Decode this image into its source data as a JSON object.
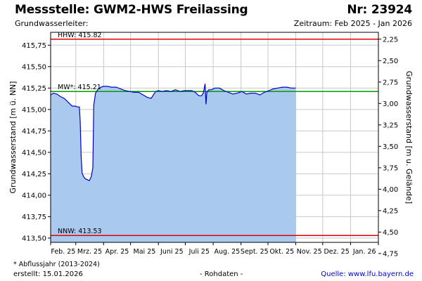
{
  "header": {
    "title_left": "Messstelle: GWM2-HWS Freilassing",
    "title_right": "Nr: 23924",
    "subtitle_left": "Grundwasserleiter:",
    "subtitle_right": "Zeitraum: Feb 2025 - Jan 2026"
  },
  "footer": {
    "footnote": "* Abflussjahr (2013-2024)",
    "created": "erstellt:  15.01.2026",
    "rohdaten": "- Rohdaten -",
    "source_label": "Quelle: ",
    "source_url": "www.lfu.bayern.de"
  },
  "colors": {
    "fill": "#a9c9ee",
    "line": "#0000c8",
    "hhw": "#e00000",
    "nnw": "#e00000",
    "mw": "#009900",
    "grid": "#c8c8c8"
  },
  "chart_data": {
    "type": "area",
    "ylabel": "Grundwasserstand [m ü. NN]",
    "ylabel_right": "Grundwasserstand [m u. Gelände]",
    "ylim": [
      413.45,
      415.9
    ],
    "yticks": [
      "413,50",
      "413,75",
      "414,00",
      "414,25",
      "414,50",
      "414,75",
      "415,00",
      "415,25",
      "415,50",
      "415,75"
    ],
    "yticks_right": [
      "2,25",
      "2,50",
      "2,75",
      "3,00",
      "3,25",
      "3,50",
      "3,75",
      "4,00",
      "4,25",
      "4,50",
      "4,75"
    ],
    "x_categories": [
      "Feb. 25",
      "Mrz. 25",
      "Apr. 25",
      "Mai 25",
      "Juni 25",
      "Juli 25",
      "Aug. 25",
      "Sept. 25",
      "Okt. 25",
      "Nov. 25",
      "Dez. 25",
      "Jan. 26"
    ],
    "grid": true,
    "reference_lines": [
      {
        "name": "HHW",
        "label": "HHW: 415.82",
        "value": 415.82
      },
      {
        "name": "MW",
        "label": "MW*: 415.21",
        "value": 415.21
      },
      {
        "name": "NNW",
        "label": "NNW: 413.53",
        "value": 413.53
      }
    ],
    "series": [
      {
        "x": [
          "2025-02-01",
          "2025-02-04",
          "2025-02-08",
          "2025-02-12",
          "2025-02-16",
          "2025-02-19",
          "2025-02-22",
          "2025-02-25",
          "2025-02-28",
          "2025-03-03",
          "2025-03-05",
          "2025-03-06",
          "2025-03-07",
          "2025-03-08",
          "2025-03-10",
          "2025-03-12",
          "2025-03-14",
          "2025-03-16",
          "2025-03-18",
          "2025-03-19",
          "2025-03-20",
          "2025-03-21",
          "2025-03-23",
          "2025-03-26",
          "2025-03-29",
          "2025-04-01",
          "2025-04-05",
          "2025-04-10",
          "2025-04-15",
          "2025-04-20",
          "2025-04-25",
          "2025-04-30",
          "2025-05-05",
          "2025-05-10",
          "2025-05-15",
          "2025-05-20",
          "2025-05-24",
          "2025-05-27",
          "2025-05-29",
          "2025-06-01",
          "2025-06-05",
          "2025-06-10",
          "2025-06-15",
          "2025-06-20",
          "2025-06-25",
          "2025-06-30",
          "2025-07-04",
          "2025-07-08",
          "2025-07-12",
          "2025-07-16",
          "2025-07-19",
          "2025-07-21",
          "2025-07-22",
          "2025-07-23",
          "2025-07-24",
          "2025-07-25",
          "2025-07-27",
          "2025-07-30",
          "2025-08-03",
          "2025-08-08",
          "2025-08-13",
          "2025-08-18",
          "2025-08-23",
          "2025-08-28",
          "2025-09-02",
          "2025-09-07",
          "2025-09-12",
          "2025-09-17",
          "2025-09-22",
          "2025-09-27",
          "2025-10-02",
          "2025-10-07",
          "2025-10-12",
          "2025-10-17",
          "2025-10-22",
          "2025-10-27",
          "2025-11-01"
        ],
        "y": [
          415.17,
          415.19,
          415.18,
          415.15,
          415.13,
          415.1,
          415.07,
          415.04,
          415.04,
          415.03,
          415.03,
          414.85,
          414.45,
          414.26,
          414.21,
          414.19,
          414.18,
          414.17,
          414.21,
          414.26,
          414.32,
          415.05,
          415.19,
          415.24,
          415.26,
          415.27,
          415.27,
          415.26,
          415.26,
          415.24,
          415.22,
          415.21,
          415.2,
          415.2,
          415.17,
          415.14,
          415.13,
          415.18,
          415.21,
          415.22,
          415.21,
          415.22,
          415.21,
          415.23,
          415.21,
          415.22,
          415.22,
          415.22,
          415.2,
          415.16,
          415.16,
          415.19,
          415.24,
          415.3,
          415.06,
          415.2,
          415.23,
          415.23,
          415.25,
          415.25,
          415.22,
          415.2,
          415.18,
          415.19,
          415.21,
          415.18,
          415.19,
          415.19,
          415.17,
          415.2,
          415.22,
          415.24,
          415.25,
          415.26,
          415.26,
          415.25,
          415.25
        ]
      }
    ]
  }
}
